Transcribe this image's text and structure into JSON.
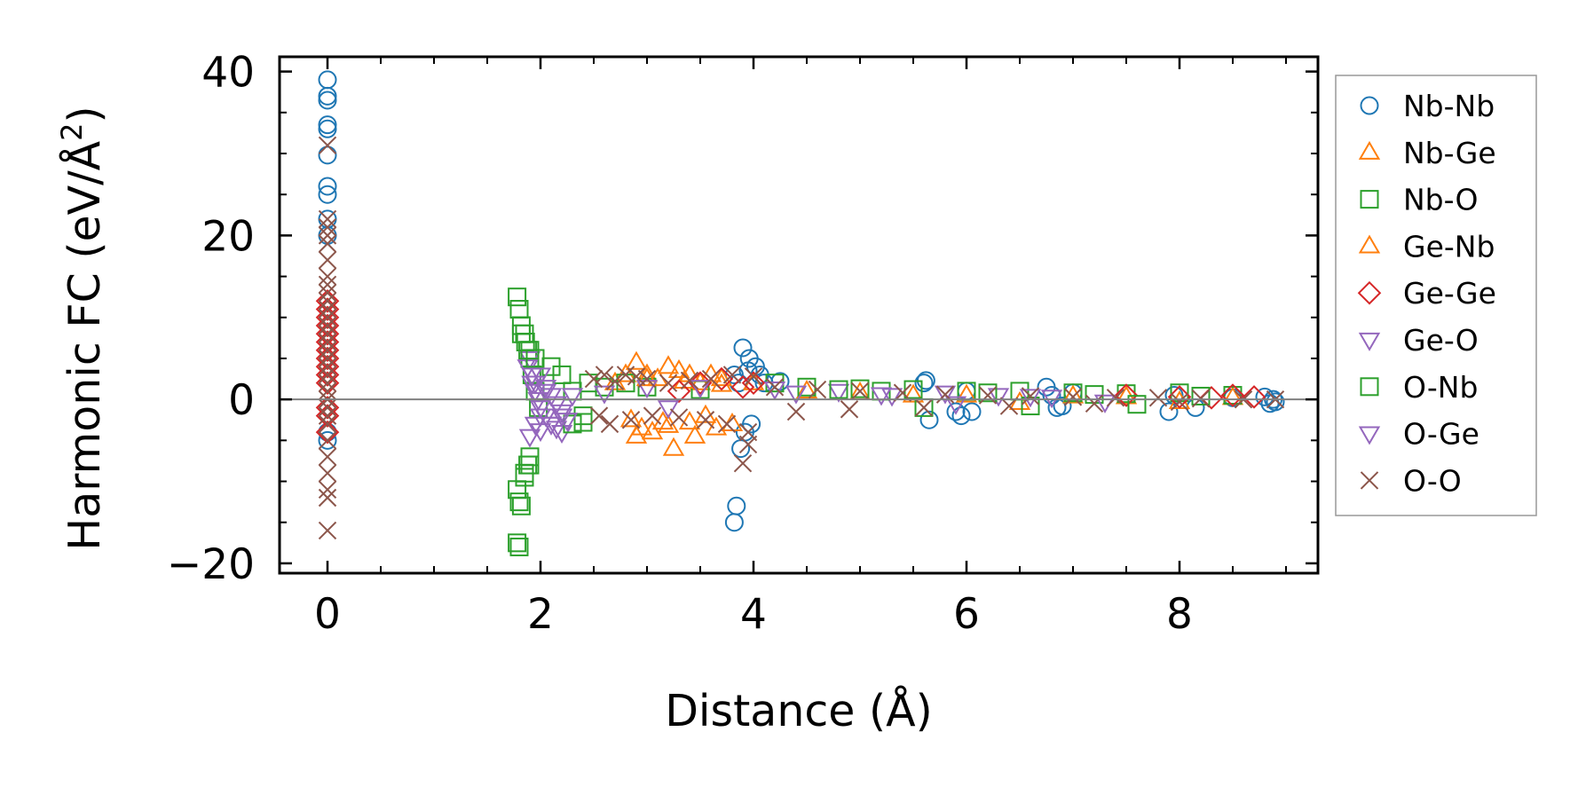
{
  "chart_data": {
    "type": "scatter",
    "xlabel": "Distance (Å)",
    "ylabel_main": "Harmonic FC (eV/Å",
    "ylabel_sup": "2",
    "ylabel_close": ")",
    "xlim": [
      -0.45,
      9.3
    ],
    "ylim": [
      -21.2,
      41.8
    ],
    "x_ticks": [
      0,
      2,
      4,
      6,
      8
    ],
    "x_tick_labels": [
      "0",
      "2",
      "4",
      "6",
      "8"
    ],
    "y_ticks": [
      -20,
      0,
      20,
      40
    ],
    "y_tick_labels": [
      "−20",
      "0",
      "20",
      "40"
    ],
    "x_minor_step": 0.5,
    "y_minor_step": 5,
    "zero_line": true,
    "grid": false,
    "legend_position": "outside-right",
    "series": [
      {
        "name": "Nb-Nb",
        "marker": "circle",
        "color": "#1f77b4",
        "x": [
          0,
          0,
          0,
          0,
          0,
          0,
          0,
          0,
          0,
          0,
          0,
          0,
          3.82,
          3.84,
          3.9,
          3.96,
          3.82,
          3.86,
          3.88,
          3.92,
          3.98,
          4.02,
          3.95,
          4.06,
          4.1,
          4.25,
          5.6,
          5.62,
          5.65,
          5.9,
          5.95,
          6.0,
          6.05,
          6.75,
          6.8,
          6.85,
          6.9,
          7.0,
          7.9,
          7.95,
          8.15,
          8.5,
          8.8,
          8.85,
          8.9,
          8.88
        ],
        "y": [
          39,
          37,
          36.5,
          33.5,
          33,
          29.8,
          26,
          25,
          22,
          20,
          -4,
          -5,
          -15,
          -13,
          6.3,
          5,
          3,
          2,
          -6,
          -4,
          -3,
          4,
          3.5,
          3,
          2,
          2.2,
          2,
          2.3,
          -2.5,
          -1.5,
          -2,
          1,
          -1.5,
          1.5,
          0.5,
          -1,
          -0.8,
          0.8,
          -1.5,
          0.5,
          -1,
          0.2,
          0.3,
          -0.5,
          -0.3,
          0
        ]
      },
      {
        "name": "Nb-Ge",
        "marker": "triangle-up",
        "color": "#ff7f0e",
        "x": [
          2.7,
          2.8,
          2.9,
          3.0,
          3.1,
          3.2,
          3.3,
          3.4,
          3.5,
          3.6,
          3.7,
          2.9,
          3.05,
          3.25,
          3.45,
          3.65,
          3.8,
          4.0,
          4.5,
          5.0,
          5.5,
          6.0,
          6.5,
          7.0,
          7.5,
          8.0,
          8.5
        ],
        "y": [
          2,
          3,
          4.5,
          3,
          2.5,
          4,
          3.5,
          3,
          2,
          3,
          2.5,
          -4.5,
          -4,
          -6,
          -4.5,
          -3.5,
          -3,
          2,
          1,
          0.8,
          0.5,
          0.5,
          -0.4,
          0.4,
          0.3,
          -0.3,
          0.2
        ]
      },
      {
        "name": "Nb-O",
        "marker": "square",
        "color": "#2ca02c",
        "x": [
          1.78,
          1.8,
          1.82,
          1.85,
          1.88,
          1.9,
          1.92,
          1.95,
          1.98,
          1.78,
          1.8,
          1.82,
          1.85,
          1.88,
          1.9,
          1.78,
          1.8,
          2.1,
          2.2,
          2.3,
          2.4,
          2.45,
          2.6,
          2.8,
          3.0,
          3.5,
          4.2,
          4.5,
          5.0,
          5.5,
          6.0,
          6.5,
          7.0,
          7.5,
          8.0,
          8.5
        ],
        "y": [
          12.5,
          11,
          9,
          8,
          6,
          5,
          3,
          1,
          -1,
          -11,
          -12.5,
          -13,
          -9,
          -8,
          -7,
          -17.5,
          -18,
          4,
          3,
          1,
          -2,
          2,
          1.5,
          2,
          1.5,
          1.2,
          2,
          1.5,
          1.3,
          1.2,
          1,
          1,
          0.8,
          0.7,
          0.8,
          0.5
        ]
      },
      {
        "name": "Ge-Nb",
        "marker": "triangle-up",
        "color": "#ff7f0e",
        "x": [
          2.85,
          3.0,
          3.15,
          3.35,
          3.55,
          3.7,
          2.95,
          3.2,
          3.4
        ],
        "y": [
          -2.5,
          2.5,
          -2.8,
          2.2,
          -2,
          1.8,
          -3.5,
          -3.2,
          -2.8
        ]
      },
      {
        "name": "Ge-Ge",
        "marker": "diamond",
        "color": "#d62728",
        "x": [
          0,
          0,
          0,
          0,
          0,
          0,
          0,
          0,
          0,
          0,
          0,
          0,
          0,
          0,
          3.3,
          3.5,
          3.7,
          3.9,
          4.0,
          7.5,
          8.0,
          8.3,
          8.5,
          8.7
        ],
        "y": [
          12,
          11,
          10,
          9,
          8,
          7,
          6,
          5,
          4,
          3,
          2,
          -1,
          -2,
          -4,
          1,
          2,
          2.5,
          1.5,
          2,
          0.5,
          0.3,
          0.2,
          0.5,
          0.3
        ]
      },
      {
        "name": "Ge-O",
        "marker": "triangle-down",
        "color": "#9467bd",
        "x": [
          1.88,
          1.9,
          1.92,
          1.95,
          1.98,
          2.0,
          2.05,
          2.1,
          2.15,
          2.2,
          1.9,
          1.95,
          2.0,
          2.05,
          1.92,
          2.3,
          2.6,
          3.0,
          3.5,
          4.2,
          4.8,
          5.3,
          5.8,
          6.3,
          6.8
        ],
        "y": [
          4,
          5,
          2,
          1,
          0,
          -1,
          -2,
          -3,
          -3.5,
          -4,
          -4.5,
          -3,
          -2,
          1,
          3,
          0.5,
          0.8,
          1.5,
          1.5,
          1.3,
          1,
          0.5,
          0.8,
          0.5,
          0.3
        ]
      },
      {
        "name": "O-Nb",
        "marker": "square",
        "color": "#2ca02c",
        "x": [
          1.82,
          1.86,
          1.9,
          1.95,
          1.85,
          1.9,
          2.3,
          2.4,
          4.8,
          5.2,
          5.6,
          6.2,
          6.6,
          7.2,
          7.6,
          8.2
        ],
        "y": [
          8,
          7,
          6,
          5,
          -9.5,
          -8,
          -3,
          -2.8,
          1.2,
          1,
          -1,
          0.8,
          -0.8,
          0.6,
          -0.6,
          0.4
        ]
      },
      {
        "name": "O-Ge",
        "marker": "triangle-down",
        "color": "#9467bd",
        "x": [
          1.95,
          2.0,
          2.05,
          2.1,
          2.15,
          2.2,
          2.25,
          2.0,
          2.1,
          2.2,
          3.2,
          4.4,
          5.2,
          5.9,
          6.6,
          7.3
        ],
        "y": [
          2,
          3,
          1.5,
          0.5,
          -0.5,
          -1.5,
          -2.5,
          -3.8,
          -3,
          -2,
          -1,
          0.8,
          0.6,
          -0.5,
          0.4,
          -0.3
        ]
      },
      {
        "name": "O-O",
        "marker": "x",
        "color": "#8c564b",
        "x": [
          0,
          0,
          0,
          0,
          0,
          0,
          0,
          0,
          0,
          0,
          0,
          0,
          0,
          0,
          0,
          0,
          0,
          0,
          0,
          0,
          0,
          0,
          0,
          0,
          0,
          0,
          0,
          0,
          0,
          0,
          0,
          2.5,
          2.6,
          2.7,
          2.8,
          2.9,
          3.0,
          3.2,
          3.4,
          3.6,
          3.8,
          4.0,
          2.55,
          2.65,
          2.85,
          3.05,
          3.3,
          3.55,
          3.75,
          3.95,
          3.9,
          3.95,
          4.2,
          4.6,
          5.0,
          5.4,
          5.8,
          6.2,
          6.6,
          7.0,
          7.4,
          7.8,
          8.2,
          8.6,
          8.9,
          4.4,
          4.9,
          5.6,
          6.4,
          7.2,
          8.0
        ],
        "y": [
          31,
          22,
          21,
          20,
          19,
          17,
          15,
          14,
          13,
          12,
          11,
          10,
          9,
          8,
          7,
          6,
          5,
          4,
          3,
          2,
          1,
          0,
          -1,
          -2,
          -3,
          -5,
          -7,
          -9,
          -11,
          -12,
          -16,
          2.5,
          3,
          2.2,
          3,
          2.8,
          2.5,
          2,
          2.3,
          2.5,
          3,
          2.8,
          -2,
          -3,
          -2.5,
          -2,
          -2.2,
          -2.5,
          -3,
          -5.5,
          -7.8,
          -4,
          1.5,
          1.2,
          1,
          0.8,
          0.6,
          0.5,
          0.4,
          0.3,
          0.2,
          0.2,
          0.1,
          0,
          0,
          -1.5,
          -1.2,
          -1,
          -0.8,
          -0.5,
          -0.3
        ]
      }
    ]
  }
}
